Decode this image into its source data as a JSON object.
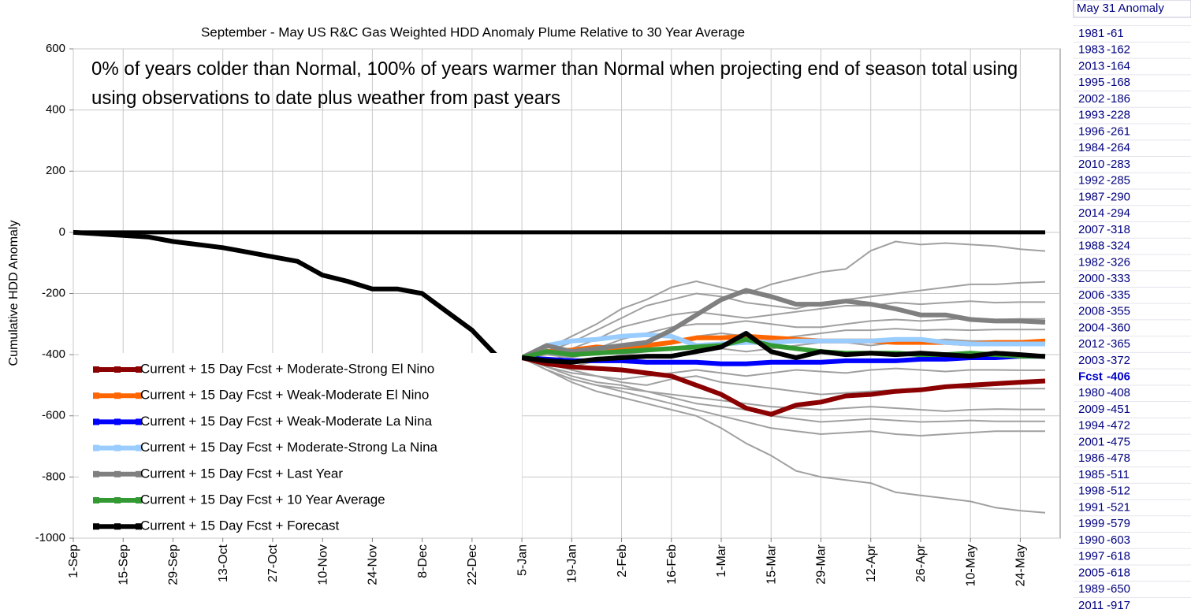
{
  "chart_data": {
    "type": "line",
    "title": "September - May US R&C Gas Weighted HDD Anomaly Plume Relative to 30 Year Average",
    "annotation": "0% of years colder than Normal, 100% of years warmer than Normal when projecting end of season total using using observations to date plus weather from past years",
    "y_label": "Cumulative HDD Anomaly",
    "categories": [
      "1-Sep",
      null,
      "15-Sep",
      null,
      "29-Sep",
      null,
      "13-Oct",
      null,
      "27-Oct",
      null,
      "10-Nov",
      null,
      "24-Nov",
      null,
      "8-Dec",
      null,
      "22-Dec",
      null,
      "5-Jan",
      null,
      "19-Jan",
      null,
      "2-Feb",
      null,
      "16-Feb",
      null,
      "1-Mar",
      null,
      "15-Mar",
      null,
      "29-Mar",
      null,
      "12-Apr",
      null,
      "26-Apr",
      null,
      "10-May",
      null,
      "24-May",
      null
    ],
    "ylim": [
      -1000,
      600
    ],
    "yticks": [
      -1000,
      -800,
      -600,
      -400,
      -200,
      0,
      200,
      400,
      600
    ],
    "grid": true,
    "reference_line": 0,
    "observed": {
      "color": "#000000",
      "values": [
        0,
        -5,
        -10,
        -15,
        -30,
        -40,
        -50,
        -65,
        -80,
        -95,
        -140,
        -160,
        -185,
        -185,
        -200,
        -260,
        -320,
        -405,
        -410,
        null,
        null,
        null,
        null,
        null,
        null,
        null,
        null,
        null,
        null,
        null,
        null,
        null,
        null,
        null,
        null,
        null,
        null,
        null,
        null,
        null
      ]
    },
    "plumes": {
      "color": "#a0a0a0",
      "series": [
        [
          null,
          null,
          null,
          null,
          null,
          null,
          null,
          null,
          null,
          null,
          null,
          null,
          null,
          null,
          null,
          null,
          null,
          null,
          -410,
          -380,
          -340,
          -300,
          -250,
          -220,
          -180,
          -160,
          -180,
          -200,
          -170,
          -150,
          -130,
          -120,
          -60,
          -30,
          -40,
          -35,
          -40,
          -45,
          -55,
          -61
        ],
        [
          null,
          null,
          null,
          null,
          null,
          null,
          null,
          null,
          null,
          null,
          null,
          null,
          null,
          null,
          null,
          null,
          null,
          null,
          -410,
          -390,
          -360,
          -320,
          -280,
          -240,
          -220,
          -200,
          -210,
          -230,
          -240,
          -250,
          -230,
          -220,
          -210,
          -200,
          -190,
          -180,
          -170,
          -170,
          -165,
          -162
        ],
        [
          null,
          null,
          null,
          null,
          null,
          null,
          null,
          null,
          null,
          null,
          null,
          null,
          null,
          null,
          null,
          null,
          null,
          null,
          -410,
          -400,
          -380,
          -350,
          -310,
          -290,
          -270,
          -260,
          -270,
          -280,
          -270,
          -260,
          -250,
          -240,
          -240,
          -230,
          -235,
          -230,
          -225,
          -230,
          -228,
          -228
        ],
        [
          null,
          null,
          null,
          null,
          null,
          null,
          null,
          null,
          null,
          null,
          null,
          null,
          null,
          null,
          null,
          null,
          null,
          null,
          -410,
          -420,
          -400,
          -380,
          -350,
          -330,
          -310,
          -300,
          -300,
          -290,
          -300,
          -310,
          -310,
          -300,
          -290,
          -285,
          -290,
          -285,
          -280,
          -285,
          -283,
          -283
        ],
        [
          null,
          null,
          null,
          null,
          null,
          null,
          null,
          null,
          null,
          null,
          null,
          null,
          null,
          null,
          null,
          null,
          null,
          null,
          -410,
          -400,
          -410,
          -390,
          -380,
          -370,
          -360,
          -340,
          -330,
          -340,
          -350,
          -340,
          -330,
          -320,
          -320,
          -315,
          -320,
          -318,
          -320,
          -318,
          -318,
          -318
        ],
        [
          null,
          null,
          null,
          null,
          null,
          null,
          null,
          null,
          null,
          null,
          null,
          null,
          null,
          null,
          null,
          null,
          null,
          null,
          -410,
          -430,
          -440,
          -420,
          -400,
          -390,
          -380,
          -370,
          -380,
          -390,
          -380,
          -370,
          -360,
          -360,
          -370,
          -360,
          -355,
          -350,
          -355,
          -355,
          -355,
          -355
        ],
        [
          null,
          null,
          null,
          null,
          null,
          null,
          null,
          null,
          null,
          null,
          null,
          null,
          null,
          null,
          null,
          null,
          null,
          null,
          -410,
          -430,
          -450,
          -470,
          -480,
          -470,
          -460,
          -450,
          -460,
          -470,
          -460,
          -450,
          -455,
          -460,
          -450,
          -445,
          -450,
          -455,
          -450,
          -450,
          -451,
          -451
        ],
        [
          null,
          null,
          null,
          null,
          null,
          null,
          null,
          null,
          null,
          null,
          null,
          null,
          null,
          null,
          null,
          null,
          null,
          null,
          -410,
          -440,
          -460,
          -470,
          -490,
          -500,
          -480,
          -470,
          -490,
          -500,
          -510,
          -520,
          -530,
          -525,
          -520,
          -515,
          -510,
          -505,
          -510,
          -512,
          -511,
          -511
        ],
        [
          null,
          null,
          null,
          null,
          null,
          null,
          null,
          null,
          null,
          null,
          null,
          null,
          null,
          null,
          null,
          null,
          null,
          null,
          -410,
          -450,
          -480,
          -500,
          -510,
          -520,
          -530,
          -540,
          -550,
          -560,
          -570,
          -575,
          -580,
          -575,
          -570,
          -575,
          -580,
          -585,
          -580,
          -578,
          -579,
          -579
        ],
        [
          null,
          null,
          null,
          null,
          null,
          null,
          null,
          null,
          null,
          null,
          null,
          null,
          null,
          null,
          null,
          null,
          null,
          null,
          -410,
          -440,
          -470,
          -490,
          -500,
          -520,
          -540,
          -560,
          -570,
          -580,
          -600,
          -610,
          -620,
          -615,
          -610,
          -615,
          -620,
          -618,
          -615,
          -618,
          -618,
          -618
        ],
        [
          null,
          null,
          null,
          null,
          null,
          null,
          null,
          null,
          null,
          null,
          null,
          null,
          null,
          null,
          null,
          null,
          null,
          null,
          -410,
          -450,
          -480,
          -500,
          -520,
          -540,
          -560,
          -580,
          -600,
          -620,
          -640,
          -650,
          -660,
          -655,
          -650,
          -660,
          -665,
          -660,
          -655,
          -650,
          -650,
          -650
        ],
        [
          null,
          null,
          null,
          null,
          null,
          null,
          null,
          null,
          null,
          null,
          null,
          null,
          null,
          null,
          null,
          null,
          null,
          null,
          -410,
          -450,
          -490,
          -520,
          -540,
          -560,
          -580,
          -600,
          -640,
          -690,
          -730,
          -780,
          -800,
          -810,
          -820,
          -850,
          -860,
          -870,
          -880,
          -900,
          -910,
          -917
        ]
      ]
    },
    "series": [
      {
        "name": "Current + 15 Day Fcst + Moderate-Strong El Nino",
        "color": "#8b0000",
        "values": [
          null,
          null,
          null,
          null,
          null,
          null,
          null,
          null,
          null,
          null,
          null,
          null,
          null,
          null,
          null,
          null,
          null,
          null,
          -410,
          -430,
          -440,
          -445,
          -450,
          -460,
          -470,
          -500,
          -530,
          -575,
          -595,
          -565,
          -555,
          -535,
          -530,
          -520,
          -515,
          -505,
          -500,
          -495,
          -490,
          -486
        ]
      },
      {
        "name": "Current + 15 Day Fcst + Weak-Moderate El Nino",
        "color": "#ff6600",
        "values": [
          null,
          null,
          null,
          null,
          null,
          null,
          null,
          null,
          null,
          null,
          null,
          null,
          null,
          null,
          null,
          null,
          null,
          null,
          -410,
          -390,
          -385,
          -375,
          -380,
          -370,
          -360,
          -345,
          -345,
          -340,
          -345,
          -350,
          -355,
          -355,
          -355,
          -360,
          -360,
          -360,
          -365,
          -360,
          -360,
          -355
        ]
      },
      {
        "name": "Current + 15 Day Fcst + Weak-Moderate La Nina",
        "color": "#0000ff",
        "values": [
          null,
          null,
          null,
          null,
          null,
          null,
          null,
          null,
          null,
          null,
          null,
          null,
          null,
          null,
          null,
          null,
          null,
          null,
          -410,
          -415,
          -420,
          -420,
          -420,
          -425,
          -425,
          -425,
          -430,
          -430,
          -425,
          -425,
          -425,
          -420,
          -420,
          -420,
          -415,
          -415,
          -410,
          -410,
          -405,
          -405
        ]
      },
      {
        "name": "Current + 15 Day Fcst + Moderate-Strong La Nina",
        "color": "#99ccff",
        "values": [
          null,
          null,
          null,
          null,
          null,
          null,
          null,
          null,
          null,
          null,
          null,
          null,
          null,
          null,
          null,
          null,
          null,
          null,
          -410,
          -370,
          -355,
          -350,
          -340,
          -335,
          -340,
          -370,
          -365,
          -360,
          -360,
          -355,
          -355,
          -355,
          -355,
          -350,
          -350,
          -360,
          -365,
          -365,
          -365,
          -365
        ]
      },
      {
        "name": "Current + 15 Day Fcst + Last Year",
        "color": "#808080",
        "values": [
          null,
          null,
          null,
          null,
          null,
          null,
          null,
          null,
          null,
          null,
          null,
          null,
          null,
          null,
          null,
          null,
          null,
          null,
          -410,
          -370,
          -390,
          -380,
          -370,
          -360,
          -320,
          -270,
          -220,
          -190,
          -210,
          -235,
          -235,
          -225,
          -235,
          -250,
          -270,
          -270,
          -285,
          -290,
          -290,
          -294
        ]
      },
      {
        "name": "Current + 15 Day Fcst + 10 Year Average",
        "color": "#339933",
        "values": [
          null,
          null,
          null,
          null,
          null,
          null,
          null,
          null,
          null,
          null,
          null,
          null,
          null,
          null,
          null,
          null,
          null,
          null,
          -410,
          -390,
          -400,
          -395,
          -390,
          -385,
          -380,
          -375,
          -370,
          -350,
          -370,
          -380,
          -390,
          -395,
          -395,
          -395,
          -400,
          -400,
          -395,
          -400,
          -405,
          -405
        ]
      },
      {
        "name": "Current + 15 Day Fcst + Forecast",
        "color": "#000000",
        "values": [
          null,
          null,
          null,
          null,
          null,
          null,
          null,
          null,
          null,
          null,
          null,
          null,
          null,
          null,
          null,
          null,
          null,
          null,
          -410,
          -420,
          -425,
          -415,
          -410,
          -405,
          -405,
          -390,
          -375,
          -330,
          -390,
          -410,
          -390,
          -400,
          -395,
          -400,
          -395,
          -400,
          -405,
          -395,
          -400,
          -406
        ]
      }
    ]
  },
  "table": {
    "title": "May 31 Anomaly",
    "highlight": "Fcst",
    "color": "#000080",
    "highlight_color": "#0000cc",
    "rows": [
      [
        "1981",
        -61
      ],
      [
        "1983",
        -162
      ],
      [
        "2013",
        -164
      ],
      [
        "1995",
        -168
      ],
      [
        "2002",
        -186
      ],
      [
        "1993",
        -228
      ],
      [
        "1996",
        -261
      ],
      [
        "1984",
        -264
      ],
      [
        "2010",
        -283
      ],
      [
        "1992",
        -285
      ],
      [
        "1987",
        -290
      ],
      [
        "2014",
        -294
      ],
      [
        "2007",
        -318
      ],
      [
        "1988",
        -324
      ],
      [
        "1982",
        -326
      ],
      [
        "2000",
        -333
      ],
      [
        "2006",
        -335
      ],
      [
        "2008",
        -355
      ],
      [
        "2004",
        -360
      ],
      [
        "2012",
        -365
      ],
      [
        "2003",
        -372
      ],
      [
        "Fcst",
        -406
      ],
      [
        "1980",
        -408
      ],
      [
        "2009",
        -451
      ],
      [
        "1994",
        -472
      ],
      [
        "2001",
        -475
      ],
      [
        "1986",
        -478
      ],
      [
        "1985",
        -511
      ],
      [
        "1998",
        -512
      ],
      [
        "1991",
        -521
      ],
      [
        "1999",
        -579
      ],
      [
        "1990",
        -603
      ],
      [
        "1997",
        -618
      ],
      [
        "2005",
        -618
      ],
      [
        "1989",
        -650
      ],
      [
        "2011",
        -917
      ]
    ]
  }
}
